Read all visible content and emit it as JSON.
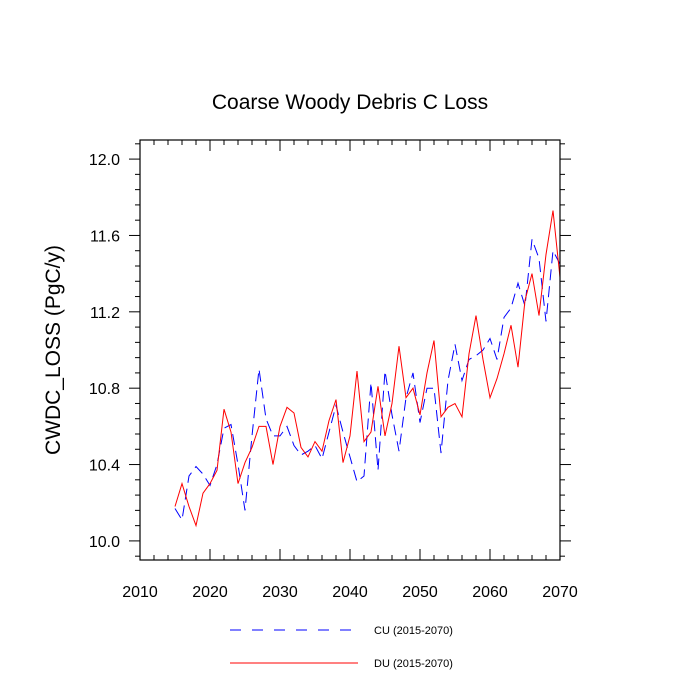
{
  "chart_data": {
    "type": "line",
    "title": "Coarse Woody Debris C Loss",
    "xlabel": "",
    "ylabel": "CWDC_LOSS  (PgC/y)",
    "xlim": [
      2010,
      2070
    ],
    "ylim": [
      9.9,
      12.1
    ],
    "xticks": [
      2010,
      2020,
      2030,
      2040,
      2050,
      2060,
      2070
    ],
    "xtick_labels": [
      "2010",
      "2020",
      "2030",
      "2040",
      "2050",
      "2060",
      "2070"
    ],
    "yticks": [
      10.0,
      10.4,
      10.8,
      11.2,
      11.6,
      12.0
    ],
    "ytick_labels": [
      "10.0",
      "10.4",
      "10.8",
      "11.2",
      "11.6",
      "12.0"
    ],
    "x": [
      2015,
      2016,
      2017,
      2018,
      2019,
      2020,
      2021,
      2022,
      2023,
      2024,
      2025,
      2026,
      2027,
      2028,
      2029,
      2030,
      2031,
      2032,
      2033,
      2034,
      2035,
      2036,
      2037,
      2038,
      2039,
      2040,
      2041,
      2042,
      2043,
      2044,
      2045,
      2046,
      2047,
      2048,
      2049,
      2050,
      2051,
      2052,
      2053,
      2054,
      2055,
      2056,
      2057,
      2058,
      2059,
      2060,
      2061,
      2062,
      2063,
      2064,
      2065,
      2066,
      2067,
      2068,
      2069,
      2070
    ],
    "series": [
      {
        "name": "CU (2015-2070)",
        "color": "#0000ff",
        "style": "dashed",
        "values": [
          10.17,
          10.11,
          10.34,
          10.39,
          10.35,
          10.29,
          10.4,
          10.59,
          10.61,
          10.4,
          10.16,
          10.55,
          10.9,
          10.64,
          10.55,
          10.55,
          10.6,
          10.5,
          10.45,
          10.47,
          10.5,
          10.43,
          10.57,
          10.71,
          10.57,
          10.44,
          10.31,
          10.34,
          10.83,
          10.37,
          10.89,
          10.66,
          10.47,
          10.75,
          10.88,
          10.62,
          10.8,
          10.8,
          10.46,
          10.84,
          11.03,
          10.84,
          10.95,
          10.97,
          11.0,
          11.06,
          10.95,
          11.17,
          11.22,
          11.35,
          11.23,
          11.58,
          11.48,
          11.15,
          11.52,
          11.45
        ]
      },
      {
        "name": "DU (2015-2070)",
        "color": "#ff0000",
        "style": "solid",
        "values": [
          10.18,
          10.3,
          10.18,
          10.08,
          10.25,
          10.3,
          10.37,
          10.69,
          10.57,
          10.3,
          10.41,
          10.49,
          10.6,
          10.6,
          10.4,
          10.6,
          10.7,
          10.67,
          10.49,
          10.44,
          10.52,
          10.47,
          10.63,
          10.74,
          10.41,
          10.55,
          10.89,
          10.52,
          10.57,
          10.81,
          10.55,
          10.72,
          11.02,
          10.75,
          10.8,
          10.66,
          10.88,
          11.05,
          10.65,
          10.7,
          10.72,
          10.65,
          10.98,
          11.18,
          10.95,
          10.75,
          10.85,
          10.98,
          11.13,
          10.91,
          11.26,
          11.4,
          11.18,
          11.5,
          11.73,
          11.38
        ]
      }
    ],
    "legend_position": "bottom-center"
  }
}
